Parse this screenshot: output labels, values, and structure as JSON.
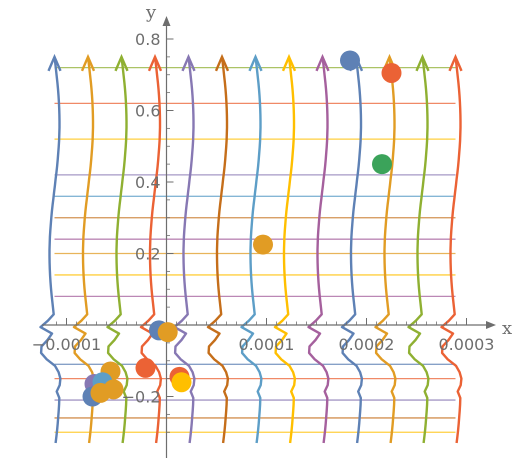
{
  "chart_data": {
    "type": "line",
    "xlabel": "x",
    "ylabel": "y",
    "xlim": [
      -0.000125,
      0.00031
    ],
    "ylim": [
      -0.33,
      0.8
    ],
    "x_ticks": [
      {
        "value": -0.0001,
        "label": "−0.0001"
      },
      {
        "value": 0.0001,
        "label": "0.0001"
      },
      {
        "value": 0.0002,
        "label": "0.0002"
      },
      {
        "value": 0.0003,
        "label": "0.0003"
      }
    ],
    "y_ticks": [
      {
        "value": 0.2,
        "label": "0.2"
      },
      {
        "value": 0.4,
        "label": "0.4"
      },
      {
        "value": 0.6,
        "label": "0.6"
      },
      {
        "value": 0.8,
        "label": "0.8"
      },
      {
        "value": -0.2,
        "label": "−0.2"
      }
    ],
    "vertical_curves": {
      "x_positions": [
        -0.000112,
        -7.85e-05,
        -4.5e-05,
        -1.15e-05,
        2.2e-05,
        5.55e-05,
        8.9e-05,
        0.0001225,
        0.000156,
        0.0001895,
        0.000223,
        0.000256,
        0.000289
      ],
      "colors": [
        "#5E81B5",
        "#E19C24",
        "#8FB032",
        "#EB6235",
        "#8778B3",
        "#C56E1A",
        "#5D9EC7",
        "#FFBF00",
        "#A5609D",
        "#5E81B5",
        "#E19C24",
        "#8FB032",
        "#EB6235"
      ],
      "y_top": 0.75,
      "y_bottom": -0.33
    },
    "horizontal_lines": {
      "y_values": [
        0.72,
        0.62,
        0.52,
        0.42,
        0.36,
        0.3,
        0.24,
        0.2,
        0.14,
        0.08,
        -0.11,
        -0.15,
        -0.21,
        -0.26,
        -0.3
      ],
      "colors": [
        "#8FB032",
        "#EB6235",
        "#FFBF00",
        "#8778B3",
        "#5D9EC7",
        "#C56E1A",
        "#A5609D",
        "#E19C24",
        "#FFBF00",
        "#A5609D",
        "#5E81B5",
        "#EB6235",
        "#8778B3",
        "#C56E1A",
        "#FFBF00"
      ],
      "x_from": -0.000112,
      "x_to": 0.000289
    },
    "points": [
      {
        "x": 0.0001835,
        "y": 0.74,
        "color": "#5E81B5"
      },
      {
        "x": 0.000225,
        "y": 0.705,
        "color": "#EB6235"
      },
      {
        "x": 0.0002155,
        "y": 0.45,
        "color": "#3BA35A"
      },
      {
        "x": 9.65e-05,
        "y": 0.225,
        "color": "#E19C24"
      },
      {
        "x": -7.5e-06,
        "y": -0.015,
        "color": "#5E81B5"
      },
      {
        "x": 1.2e-06,
        "y": -0.02,
        "color": "#E19C24"
      },
      {
        "x": -2.1e-05,
        "y": -0.12,
        "color": "#EB6235"
      },
      {
        "x": -5.6e-05,
        "y": -0.13,
        "color": "#E19C24"
      },
      {
        "x": 1.3e-05,
        "y": -0.145,
        "color": "#EB6235"
      },
      {
        "x": 1.5e-05,
        "y": -0.16,
        "color": "#FFBF00"
      },
      {
        "x": -7.2e-05,
        "y": -0.165,
        "color": "#8778B3"
      },
      {
        "x": -6.4e-05,
        "y": -0.16,
        "color": "#5D9EC7"
      },
      {
        "x": -5.3e-05,
        "y": -0.18,
        "color": "#E19C24"
      },
      {
        "x": -7.4e-05,
        "y": -0.2,
        "color": "#5E81B5"
      },
      {
        "x": -6.6e-05,
        "y": -0.19,
        "color": "#E19C24"
      }
    ]
  }
}
